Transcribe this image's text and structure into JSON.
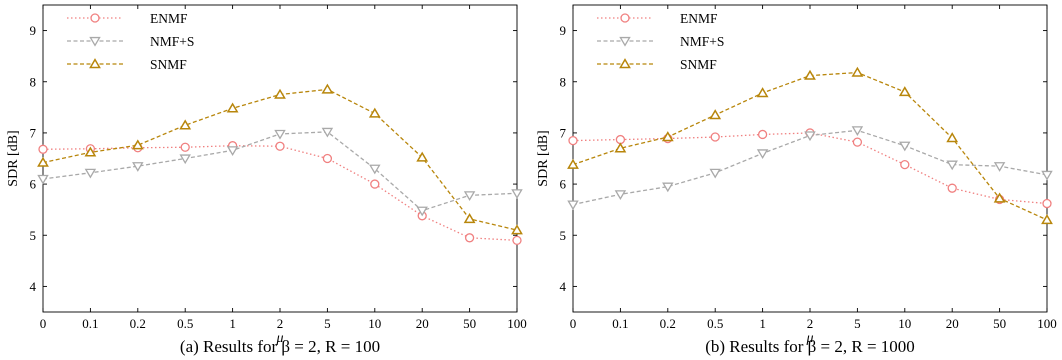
{
  "chart_data": [
    {
      "type": "line",
      "caption": "(a) Results for β = 2, R = 100",
      "xlabel": "μ",
      "ylabel": "SDR [dB]",
      "categories": [
        "0",
        "0.1",
        "0.2",
        "0.5",
        "1",
        "2",
        "5",
        "10",
        "20",
        "50",
        "100"
      ],
      "ylim": [
        3.5,
        9.5
      ],
      "yticks": [
        4,
        5,
        6,
        7,
        8,
        9
      ],
      "grid": false,
      "legend": "top-left",
      "series": [
        {
          "name": "ENMF",
          "color": "#f08080",
          "marker": "circle",
          "dash": "dotted",
          "values": [
            6.68,
            6.69,
            6.71,
            6.72,
            6.75,
            6.74,
            6.5,
            6.0,
            5.38,
            4.95,
            4.9
          ]
        },
        {
          "name": "NMF+S",
          "color": "#a9a9a9",
          "marker": "triangle-down",
          "dash": "dashed",
          "values": [
            6.1,
            6.22,
            6.35,
            6.5,
            6.66,
            6.98,
            7.02,
            6.3,
            5.48,
            5.78,
            5.82
          ]
        },
        {
          "name": "SNMF",
          "color": "#b8860b",
          "marker": "triangle-up",
          "dash": "dashed",
          "values": [
            6.42,
            6.62,
            6.76,
            7.15,
            7.48,
            7.75,
            7.85,
            7.38,
            6.52,
            5.32,
            5.1
          ]
        }
      ]
    },
    {
      "type": "line",
      "caption": "(b) Results for β = 2, R = 1000",
      "xlabel": "μ",
      "ylabel": "SDR [dB]",
      "categories": [
        "0",
        "0.1",
        "0.2",
        "0.5",
        "1",
        "2",
        "5",
        "10",
        "20",
        "50",
        "100"
      ],
      "ylim": [
        3.5,
        9.5
      ],
      "yticks": [
        4,
        5,
        6,
        7,
        8,
        9
      ],
      "grid": false,
      "legend": "top-left",
      "series": [
        {
          "name": "ENMF",
          "color": "#f08080",
          "marker": "circle",
          "dash": "dotted",
          "values": [
            6.85,
            6.87,
            6.89,
            6.92,
            6.97,
            7.0,
            6.82,
            6.38,
            5.92,
            5.7,
            5.62
          ]
        },
        {
          "name": "NMF+S",
          "color": "#a9a9a9",
          "marker": "triangle-down",
          "dash": "dashed",
          "values": [
            5.6,
            5.8,
            5.95,
            6.22,
            6.6,
            6.95,
            7.05,
            6.75,
            6.38,
            6.35,
            6.18
          ]
        },
        {
          "name": "SNMF",
          "color": "#b8860b",
          "marker": "triangle-up",
          "dash": "dashed",
          "values": [
            6.38,
            6.7,
            6.92,
            7.35,
            7.78,
            8.12,
            8.18,
            7.8,
            6.9,
            5.72,
            5.3
          ]
        }
      ]
    }
  ]
}
